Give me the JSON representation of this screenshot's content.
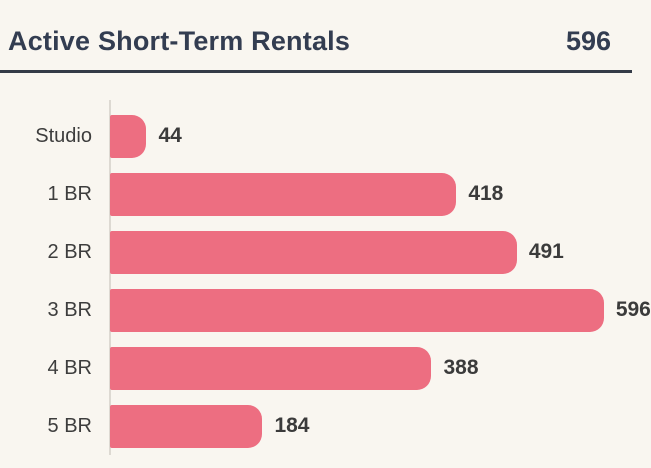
{
  "header": {
    "title": "Active Short-Term Rentals",
    "value": "596"
  },
  "colors": {
    "background": "#f9f6f0",
    "bar": "#ed6e81",
    "header_text": "#333d51",
    "divider": "#343b47",
    "axis_line": "#ddd9d2",
    "category_text": "#3d3d3d",
    "value_text": "#3b3b3b"
  },
  "chart_data": {
    "type": "bar",
    "orientation": "horizontal",
    "title": "Active Short-Term Rentals",
    "categories": [
      "Studio",
      "1 BR",
      "2 BR",
      "3 BR",
      "4 BR",
      "5 BR"
    ],
    "values": [
      44,
      418,
      491,
      596,
      388,
      184
    ],
    "value_labels": [
      "44",
      "418",
      "491",
      "596",
      "388",
      "184"
    ],
    "xlabel": "",
    "ylabel": "",
    "xlim": [
      0,
      630
    ],
    "grid": false,
    "legend": false,
    "bar_color": "#ed6e81"
  }
}
